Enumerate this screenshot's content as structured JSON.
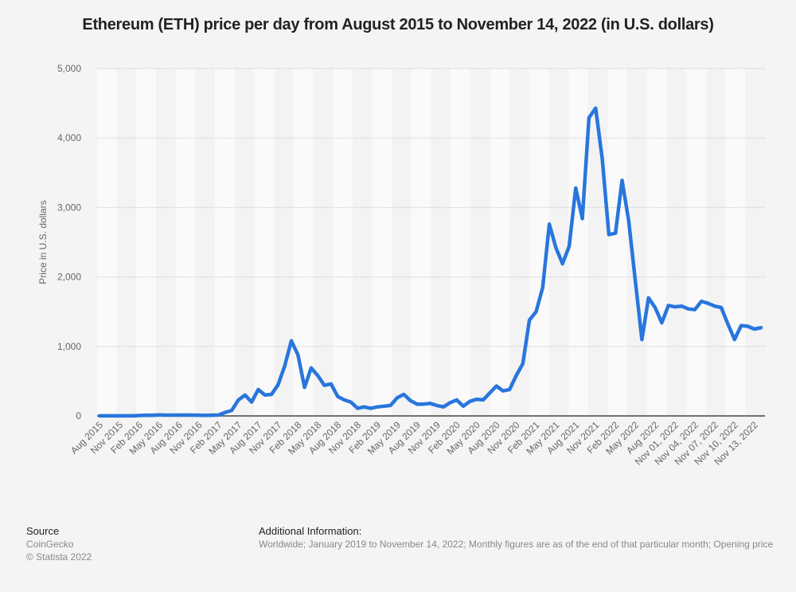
{
  "chart_data": {
    "type": "line",
    "title": "Ethereum (ETH) price per day from August 2015 to November 14, 2022 (in U.S. dollars)",
    "xlabel": "",
    "ylabel": "Price in U.S. dollars",
    "ylim": [
      0,
      5000
    ],
    "yticks": [
      0,
      1000,
      2000,
      3000,
      4000,
      5000
    ],
    "ytick_labels": [
      "0",
      "1,000",
      "2,000",
      "3,000",
      "4,000",
      "5,000"
    ],
    "grid": true,
    "legend": "none",
    "color": "#2876dd",
    "x": [
      "Aug 2015",
      "Sep 2015",
      "Oct 2015",
      "Nov 2015",
      "Dec 2015",
      "Jan 2016",
      "Feb 2016",
      "Mar 2016",
      "Apr 2016",
      "May 2016",
      "Jun 2016",
      "Jul 2016",
      "Aug 2016",
      "Sep 2016",
      "Oct 2016",
      "Nov 2016",
      "Dec 2016",
      "Jan 2017",
      "Feb 2017",
      "Mar 2017",
      "Apr 2017",
      "May 2017",
      "Jun 2017",
      "Jul 2017",
      "Aug 2017",
      "Sep 2017",
      "Oct 2017",
      "Nov 2017",
      "Dec 2017",
      "Jan 2018",
      "Feb 2018",
      "Mar 2018",
      "Apr 2018",
      "May 2018",
      "Jun 2018",
      "Jul 2018",
      "Aug 2018",
      "Sep 2018",
      "Oct 2018",
      "Nov 2018",
      "Dec 2018",
      "Jan 2019",
      "Feb 2019",
      "Mar 2019",
      "Apr 2019",
      "May 2019",
      "Jun 2019",
      "Jul 2019",
      "Aug 2019",
      "Sep 2019",
      "Oct 2019",
      "Nov 2019",
      "Dec 2019",
      "Jan 2020",
      "Feb 2020",
      "Mar 2020",
      "Apr 2020",
      "May 2020",
      "Jun 2020",
      "Jul 2020",
      "Aug 2020",
      "Sep 2020",
      "Oct 2020",
      "Nov 2020",
      "Dec 2020",
      "Jan 2021",
      "Feb 2021",
      "Mar 2021",
      "Apr 2021",
      "May 2021",
      "Jun 2021",
      "Jul 2021",
      "Aug 2021",
      "Sep 2021",
      "Oct 2021",
      "Nov 2021",
      "Dec 2021",
      "Jan 2022",
      "Feb 2022",
      "Mar 2022",
      "Apr 2022",
      "May 2022",
      "Jun 2022",
      "Jul 2022",
      "Aug 2022",
      "Sep 2022",
      "Oct 2022",
      "Nov 01, 2022",
      "Nov 02, 2022",
      "Nov 03, 2022",
      "Nov 04, 2022",
      "Nov 05, 2022",
      "Nov 06, 2022",
      "Nov 07, 2022",
      "Nov 08, 2022",
      "Nov 09, 2022",
      "Nov 10, 2022",
      "Nov 11, 2022",
      "Nov 12, 2022",
      "Nov 13, 2022",
      "Nov 14, 2022"
    ],
    "xtick_labels": [
      "Aug 2015",
      "Nov 2015",
      "Feb 2016",
      "May 2016",
      "Aug 2016",
      "Nov 2016",
      "Feb 2017",
      "May 2017",
      "Aug 2017",
      "Nov 2017",
      "Feb 2018",
      "May 2018",
      "Aug 2018",
      "Nov 2018",
      "Feb 2019",
      "May 2019",
      "Aug 2019",
      "Nov 2019",
      "Feb 2020",
      "May 2020",
      "Aug 2020",
      "Nov 2020",
      "Feb 2021",
      "May 2021",
      "Aug 2021",
      "Nov 2021",
      "Feb 2022",
      "May 2022",
      "Aug 2022",
      "Nov 01, 2022",
      "Nov 04, 2022",
      "Nov 07, 2022",
      "Nov 10, 2022",
      "Nov 13, 2022"
    ],
    "values": [
      1,
      1,
      1,
      1,
      1,
      1,
      6,
      10,
      9,
      14,
      12,
      12,
      11,
      13,
      11,
      10,
      8,
      10,
      13,
      50,
      80,
      230,
      300,
      200,
      380,
      300,
      310,
      450,
      720,
      1080,
      880,
      410,
      690,
      580,
      440,
      460,
      280,
      230,
      200,
      110,
      130,
      110,
      130,
      140,
      150,
      260,
      310,
      220,
      170,
      170,
      180,
      150,
      130,
      190,
      230,
      140,
      210,
      240,
      230,
      330,
      430,
      360,
      380,
      580,
      750,
      1380,
      1500,
      1850,
      2760,
      2420,
      2190,
      2440,
      3280,
      2840,
      4290,
      4430,
      3700,
      2610,
      2630,
      3390,
      2810,
      1950,
      1100,
      1700,
      1560,
      1340,
      1590,
      1570,
      1580,
      1540,
      1530,
      1650,
      1620,
      1580,
      1560,
      1320,
      1100,
      1300,
      1290,
      1250,
      1270
    ]
  },
  "footer": {
    "source_heading": "Source",
    "source_name": "CoinGecko",
    "copyright": "© Statista 2022",
    "additional_heading": "Additional Information:",
    "additional_text": "Worldwide; January 2019 to November 14, 2022; Monthly figures are as of the end of that particular month; Opening price"
  }
}
